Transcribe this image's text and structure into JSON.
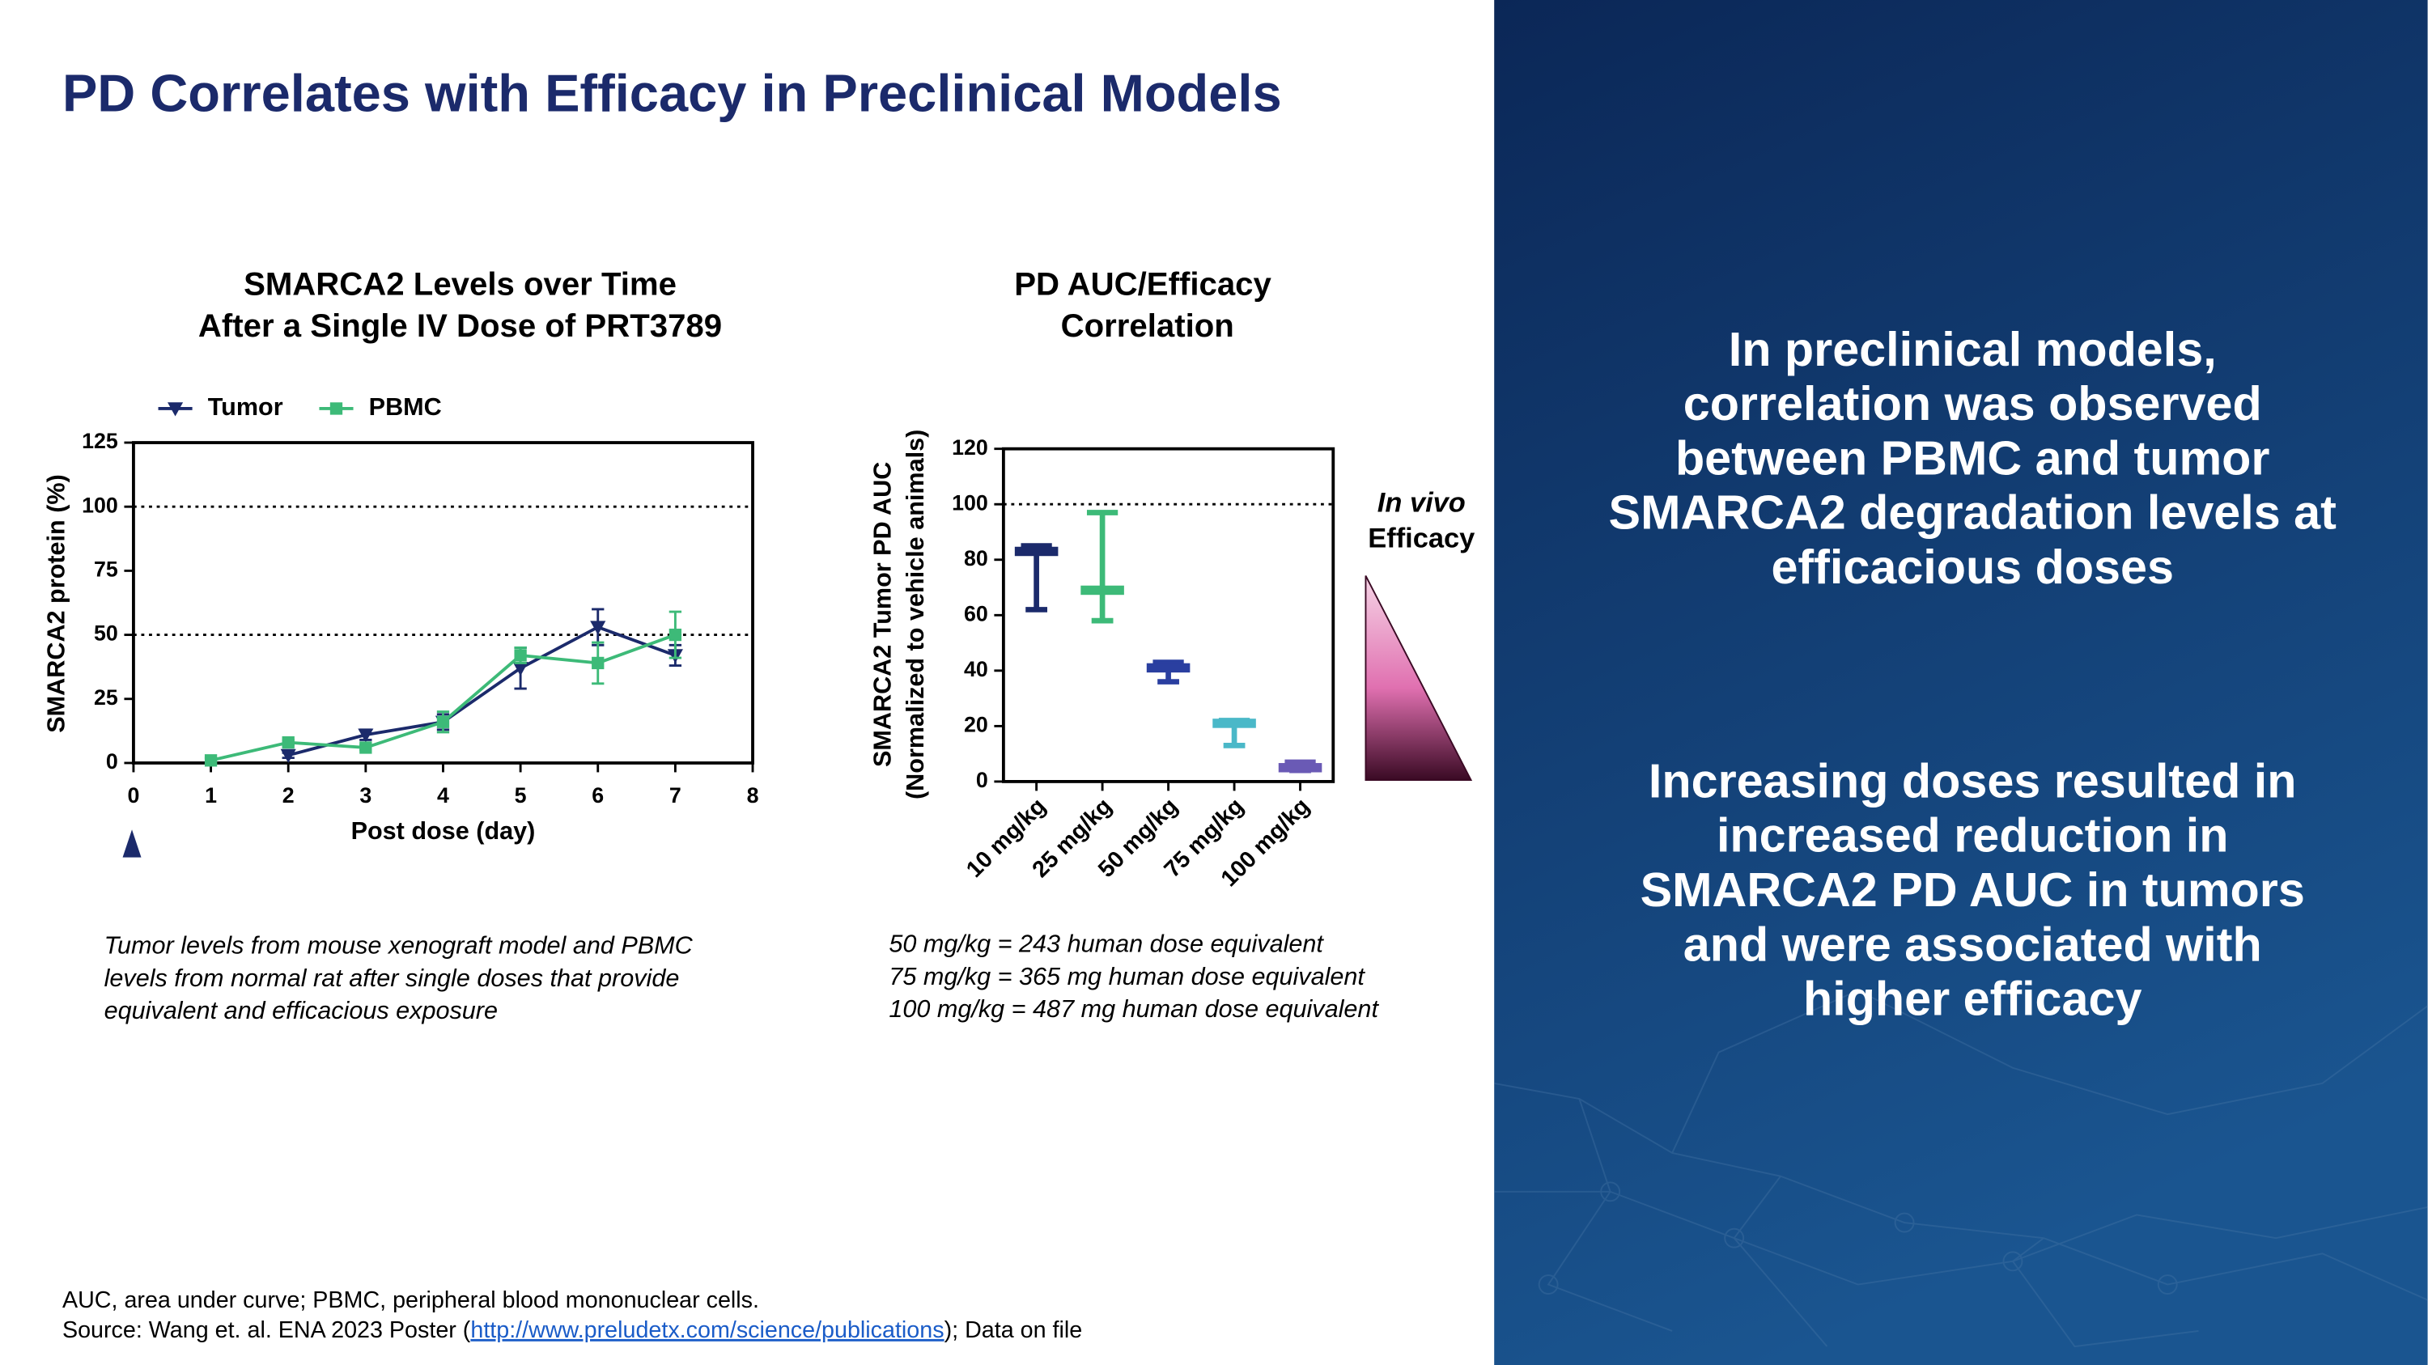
{
  "title": "PD Correlates with Efficacy in Preclinical Models",
  "chart_data": [
    {
      "type": "line",
      "title": [
        "SMARCA2 Levels over Time",
        "After a Single IV Dose of PRT3789"
      ],
      "xlabel": "Post dose (day)",
      "ylabel": "SMARCA2 protein (%)",
      "xlim": [
        0,
        8
      ],
      "xticks": [
        0,
        1,
        2,
        3,
        4,
        5,
        6,
        7,
        8
      ],
      "ylim": [
        0,
        125
      ],
      "yticks": [
        0,
        25,
        50,
        75,
        100,
        125
      ],
      "reference_lines": [
        100,
        50
      ],
      "series": [
        {
          "name": "Tumor",
          "color": "#1b2a6b",
          "marker": "triangle-down",
          "x": [
            2,
            3,
            4,
            5,
            6,
            7
          ],
          "values": [
            3,
            11,
            16,
            37,
            53,
            42
          ],
          "errors": [
            1,
            2,
            3,
            8,
            7,
            4
          ]
        },
        {
          "name": "PBMC",
          "color": "#3dba78",
          "marker": "square",
          "x": [
            1,
            2,
            3,
            4,
            5,
            6,
            7
          ],
          "values": [
            1,
            8,
            6,
            16,
            42,
            39,
            50
          ],
          "errors": [
            1,
            1,
            1,
            4,
            3,
            8,
            9
          ]
        }
      ],
      "caption": [
        "Tumor levels from mouse xenograft model and PBMC",
        "levels from normal rat after single doses that provide",
        "equivalent and efficacious exposure"
      ]
    },
    {
      "type": "box",
      "title": [
        "PD AUC/Efficacy",
        "Correlation"
      ],
      "ylabel": [
        "SMARCA2 Tumor PD AUC",
        "(Normalized to vehicle animals)"
      ],
      "categories": [
        "10 mg/kg",
        "25 mg/kg",
        "50 mg/kg",
        "75 mg/kg",
        "100 mg/kg"
      ],
      "low": [
        62,
        58,
        36,
        13,
        4
      ],
      "high": [
        85,
        97,
        43,
        22,
        7
      ],
      "median": [
        83,
        69,
        41,
        21,
        5
      ],
      "colors": [
        "#1b2a6b",
        "#3dba78",
        "#2a3fa0",
        "#4ab8c8",
        "#6a5ab5"
      ],
      "ylim": [
        0,
        120
      ],
      "yticks": [
        0,
        20,
        40,
        60,
        80,
        100,
        120
      ],
      "reference_lines": [
        100
      ],
      "annotation": [
        "In vivo",
        "Efficacy"
      ],
      "caption": [
        "50 mg/kg = 243 human dose equivalent",
        "75 mg/kg = 365 mg human dose equivalent",
        "100 mg/kg = 487 mg human dose equivalent"
      ]
    }
  ],
  "sidebar": [
    [
      "In preclinical models,",
      "correlation was observed",
      "between PBMC and tumor",
      "SMARCA2 degradation levels at",
      "efficacious doses"
    ],
    [
      "Increasing doses resulted in",
      "increased reduction in",
      "SMARCA2 PD AUC in tumors",
      "and were associated with",
      "higher efficacy"
    ]
  ],
  "footnotes": {
    "abbreviations": "AUC, area under curve; PBMC, peripheral blood mononuclear cells.",
    "source_prefix": "Source: Wang et. al. ENA 2023 Poster (",
    "source_link": "http://www.preludetx.com/science/publications",
    "source_suffix": "); Data on file"
  }
}
